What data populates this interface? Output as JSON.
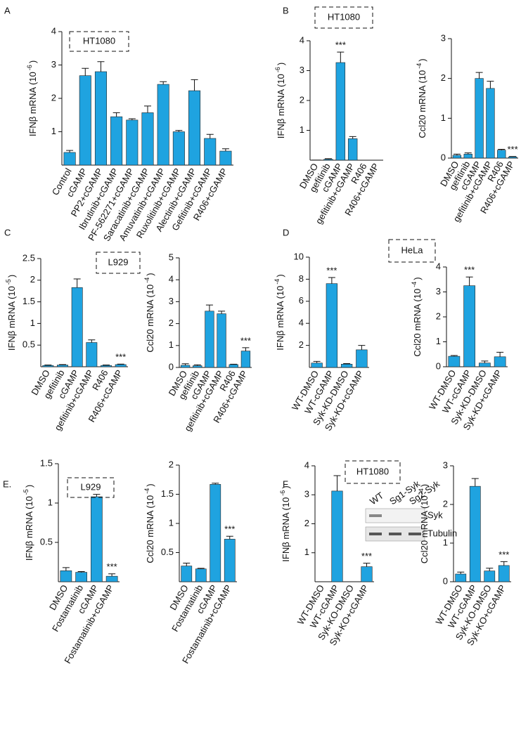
{
  "chart_data": [
    {
      "type": "bar",
      "panel": "A",
      "cell_line": "HT1080",
      "ylabel": [
        "IFNβ mRNA (10",
        "-6",
        ")"
      ],
      "color": "#1fa3e0",
      "categories": [
        "Control",
        "cGAMP",
        "PP2+cGAMP",
        "Ibrutinib+cGAMP",
        "PF-562271+cGAMP",
        "Saracatinib+cGAMP",
        "Amuvatinib+cGAMP",
        "Ruxolitinib+cGAMP",
        "Alectinib+cGAMP",
        "Gefitinib+cGAMP",
        "R406+cGAMP"
      ],
      "values": [
        0.38,
        2.68,
        2.8,
        1.45,
        1.35,
        1.57,
        2.42,
        1.0,
        2.23,
        0.8,
        0.42
      ],
      "errors": [
        0.06,
        0.22,
        0.3,
        0.12,
        0.04,
        0.2,
        0.08,
        0.04,
        0.33,
        0.12,
        0.07
      ],
      "ylim": [
        0,
        4
      ],
      "yticks": [
        1,
        2,
        3,
        4
      ]
    },
    {
      "type": "bar",
      "panel": "B",
      "cell_line": "HT1080",
      "ylabel": [
        "IFNβ mRNA (10",
        "-6",
        ")"
      ],
      "color": "#1fa3e0",
      "categories": [
        "DMSO",
        "gefitinib",
        "cGAMP",
        "gefitinib+cGAMP",
        "R406",
        "R406+cGAMP"
      ],
      "values": [
        0.01,
        0.03,
        3.27,
        0.72,
        0,
        0
      ],
      "errors": [
        0,
        0.02,
        0.35,
        0.07,
        0,
        0
      ],
      "significance": [
        null,
        null,
        "***",
        null,
        null,
        null
      ],
      "ylim": [
        0,
        4
      ],
      "yticks": [
        1,
        2,
        3,
        4
      ]
    },
    {
      "type": "bar",
      "ylabel": [
        "Ccl20 mRNA (10",
        "-4",
        ")"
      ],
      "color": "#1fa3e0",
      "categories": [
        "DMSO",
        "gefitinib",
        "cGAMP",
        "gefitinib+cGAMP",
        "R406",
        "R406+cGAMP"
      ],
      "values": [
        0.07,
        0.1,
        2.0,
        1.75,
        0.2,
        0.03
      ],
      "errors": [
        0.03,
        0.03,
        0.15,
        0.18,
        0.02,
        0.01
      ],
      "significance": [
        null,
        null,
        null,
        null,
        null,
        "***"
      ],
      "ylim": [
        0,
        3
      ],
      "yticks": [
        0,
        1,
        2,
        3
      ]
    },
    {
      "type": "bar",
      "panel": "C",
      "cell_line": "L929",
      "ylabel": [
        "IFNβ mRNA (10",
        "-5",
        ")"
      ],
      "color": "#1fa3e0",
      "categories": [
        "DMSO",
        "gefitinib",
        "cGAMP",
        "gefitinib+cGAMP",
        "R406",
        "R406+cGAMP"
      ],
      "values": [
        0.03,
        0.04,
        1.83,
        0.56,
        0.03,
        0.05
      ],
      "errors": [
        0.01,
        0.01,
        0.2,
        0.06,
        0.01,
        0.01
      ],
      "significance": [
        null,
        null,
        null,
        null,
        null,
        "***"
      ],
      "ylim": [
        0,
        2.5
      ],
      "yticks": [
        0.5,
        1,
        1.5,
        2,
        2.5
      ]
    },
    {
      "type": "bar",
      "ylabel": [
        "Ccl20 mRNA (10",
        "-4",
        ")"
      ],
      "color": "#1fa3e0",
      "categories": [
        "DMSO",
        "gefitinib",
        "cGAMP",
        "gefitinib+cGAMP",
        "R406",
        "R406+cGAMP"
      ],
      "values": [
        0.1,
        0.08,
        2.57,
        2.45,
        0.13,
        0.75
      ],
      "errors": [
        0.07,
        0.04,
        0.28,
        0.12,
        0.02,
        0.15
      ],
      "significance": [
        null,
        null,
        null,
        null,
        null,
        "***"
      ],
      "ylim": [
        0,
        5
      ],
      "yticks": [
        0,
        1,
        2,
        3,
        4,
        5
      ]
    },
    {
      "type": "bar",
      "panel": "D",
      "cell_line": "HeLa",
      "ylabel": [
        "IFNβ mRNA (10",
        "-4",
        ")"
      ],
      "color": "#1fa3e0",
      "categories": [
        "WT-DMSO",
        "WT-cGAMP",
        "Syk-KD-DMSO",
        "Syk-KD+cGAMP"
      ],
      "values": [
        0.4,
        7.6,
        0.3,
        1.6
      ],
      "errors": [
        0.15,
        0.55,
        0.05,
        0.4
      ],
      "significance": [
        null,
        "***",
        null,
        null
      ],
      "ylim": [
        0,
        10
      ],
      "yticks": [
        2,
        4,
        6,
        8,
        10
      ]
    },
    {
      "type": "bar",
      "ylabel": [
        "Ccl20 mRNA (10",
        "-4",
        ")"
      ],
      "color": "#1fa3e0",
      "categories": [
        "WT-DMSO",
        "WT-cGAMP",
        "Syk-KD-DMSO",
        "Syk-KD+cGAMP"
      ],
      "values": [
        0.42,
        3.25,
        0.15,
        0.4
      ],
      "errors": [
        0.03,
        0.35,
        0.08,
        0.18
      ],
      "significance": [
        null,
        "***",
        null,
        null
      ],
      "ylim": [
        0,
        4
      ],
      "yticks": [
        0,
        1,
        2,
        3,
        4
      ]
    },
    {
      "type": "bar",
      "panel": "E.",
      "cell_line": "L929",
      "ylabel": [
        "IFNβ mRNA (10",
        "-5",
        ")"
      ],
      "color": "#1fa3e0",
      "categories": [
        "DMSO",
        "Fostamatinib",
        "cGAMP",
        "Fostamatinib+cGAMP"
      ],
      "values": [
        0.14,
        0.12,
        1.08,
        0.07
      ],
      "errors": [
        0.04,
        0.01,
        0.03,
        0.03
      ],
      "significance": [
        null,
        null,
        null,
        "***"
      ],
      "ylim": [
        0,
        1.5
      ],
      "yticks": [
        0.5,
        1,
        1.5
      ]
    },
    {
      "type": "bar",
      "ylabel": [
        "Ccl20 mRNA (10",
        "-4",
        ")"
      ],
      "color": "#1fa3e0",
      "categories": [
        "DMSO",
        "Fostamatinib",
        "cGAMP",
        "Fostamatinib+cGAMP"
      ],
      "values": [
        0.27,
        0.22,
        1.67,
        0.73
      ],
      "errors": [
        0.05,
        0.01,
        0.02,
        0.05
      ],
      "significance": [
        null,
        null,
        null,
        "***"
      ],
      "ylim": [
        0,
        2
      ],
      "yticks": [
        0.5,
        1,
        1.5,
        2
      ]
    },
    {
      "type": "bar",
      "panel": "F",
      "cell_line": "HT1080",
      "ylabel": [
        "IFNβ mRNA (10",
        "-6",
        ")"
      ],
      "color": "#1fa3e0",
      "categories": [
        "WT-DMSO",
        "WT-cGAMP",
        "Syk-KO-DMSO",
        "Syk-KO+cGAMP"
      ],
      "values": [
        0,
        3.13,
        0,
        0.52
      ],
      "errors": [
        0,
        0.53,
        0,
        0.12
      ],
      "significance": [
        null,
        null,
        null,
        "***"
      ],
      "ylim": [
        0,
        4
      ],
      "yticks": [
        1,
        2,
        3,
        4
      ],
      "inset": {
        "columns": [
          "WT",
          "Sg1-Syk",
          "Sg2-Syk"
        ],
        "rows": [
          "Syk",
          "Tubulin"
        ]
      }
    },
    {
      "type": "bar",
      "ylabel": [
        "Ccl20 mRNA (10",
        "-4",
        ")"
      ],
      "color": "#1fa3e0",
      "categories": [
        "WT-DMSO",
        "WT-cGAMP",
        "Syk-KO-DMSO",
        "Syk-KO+cGAMP"
      ],
      "values": [
        0.2,
        2.47,
        0.28,
        0.42
      ],
      "errors": [
        0.05,
        0.2,
        0.07,
        0.1
      ],
      "significance": [
        null,
        null,
        null,
        "***"
      ],
      "ylim": [
        0,
        3
      ],
      "yticks": [
        0,
        1,
        2,
        3
      ]
    }
  ]
}
